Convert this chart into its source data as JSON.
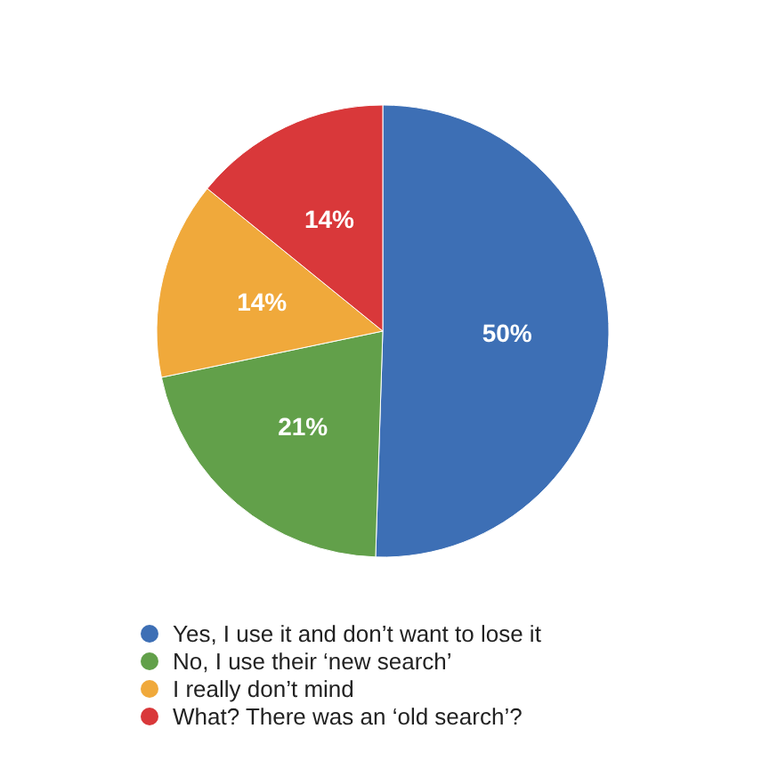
{
  "chart_data": {
    "type": "pie",
    "categories": [
      "Yes, I use it and don’t want to lose it",
      "No, I use their ‘new search’",
      "I really don’t mind",
      "What? There was an ‘old search’?"
    ],
    "values": [
      50,
      21,
      14,
      14
    ],
    "colors": [
      "#3d6fb5",
      "#62a04a",
      "#f0a93b",
      "#d9383a"
    ],
    "value_labels": [
      "50%",
      "21%",
      "14%",
      "14%"
    ],
    "legend": "bottom"
  }
}
